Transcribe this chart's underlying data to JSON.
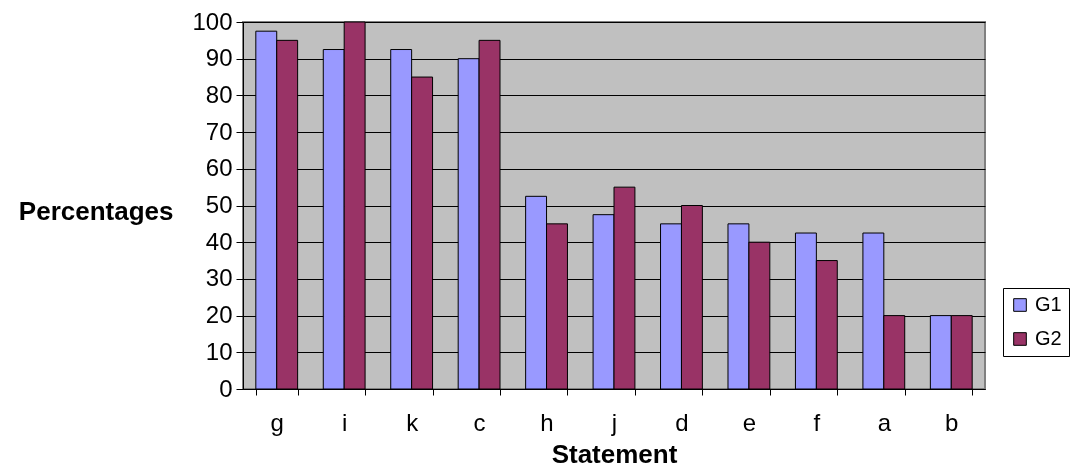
{
  "chart_data": {
    "type": "bar",
    "xlabel": "Statement",
    "ylabel": "Percentages",
    "categories": [
      "g",
      "i",
      "k",
      "c",
      "h",
      "j",
      "d",
      "e",
      "f",
      "a",
      "b"
    ],
    "series": [
      {
        "name": "G1",
        "color": "#9999ff",
        "values": [
          97.5,
          92.5,
          92.5,
          90,
          52.5,
          47.5,
          45,
          45,
          42.5,
          42.5,
          20
        ]
      },
      {
        "name": "G2",
        "color": "#993366",
        "values": [
          95,
          100,
          85,
          95,
          45,
          55,
          50,
          40,
          35,
          20,
          20
        ]
      }
    ],
    "ylim": [
      0,
      100
    ],
    "yticks": [
      0,
      10,
      20,
      30,
      40,
      50,
      60,
      70,
      80,
      90,
      100
    ],
    "grid": "y",
    "legend": "right"
  }
}
